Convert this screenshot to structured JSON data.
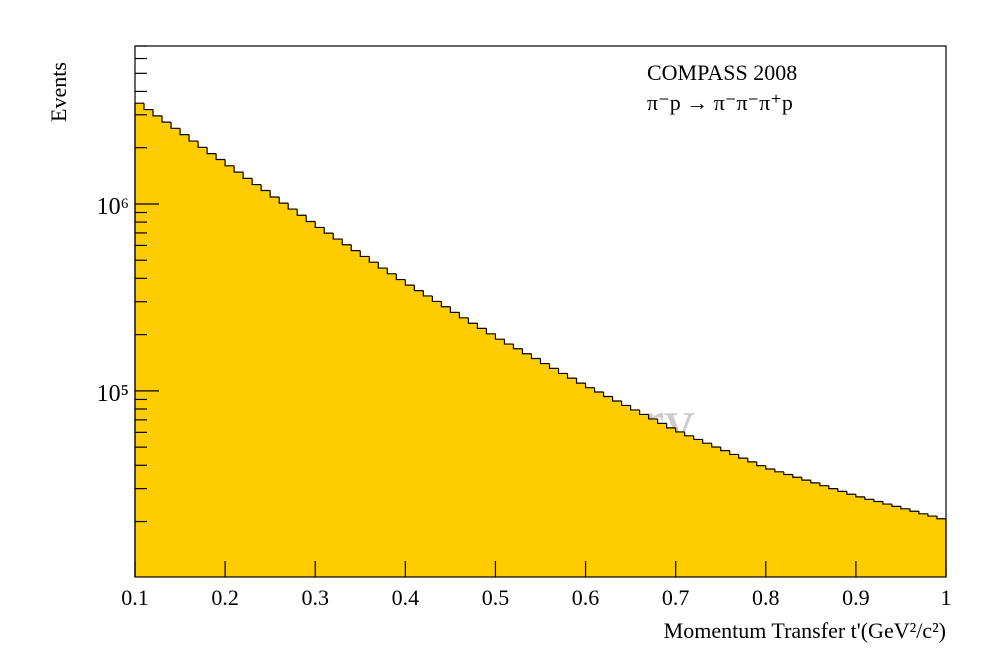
{
  "chart_data": {
    "type": "histogram",
    "x_label": "Momentum Transfer t'(GeV²/c²)",
    "y_label": "Events",
    "annotations": [
      "COMPASS 2008",
      "π⁻p → π⁻π⁻π⁺p",
      "preliminary"
    ],
    "color": "#ffcc00",
    "edge_color": "#000000",
    "log_y": true,
    "bins": [
      0.1,
      0.11,
      0.12,
      0.13,
      0.14,
      0.15,
      0.16,
      0.17,
      0.18,
      0.19,
      0.2,
      0.21,
      0.22,
      0.23,
      0.24,
      0.25,
      0.26,
      0.27,
      0.28,
      0.29,
      0.3,
      0.31,
      0.32,
      0.33,
      0.34,
      0.35,
      0.36,
      0.37,
      0.38,
      0.39,
      0.4,
      0.41,
      0.42,
      0.43,
      0.44,
      0.45,
      0.46,
      0.47,
      0.48,
      0.49,
      0.5,
      0.51,
      0.52,
      0.53,
      0.54,
      0.55,
      0.56,
      0.57,
      0.58,
      0.59,
      0.6,
      0.61,
      0.62,
      0.63,
      0.64,
      0.65,
      0.66,
      0.67,
      0.68,
      0.69,
      0.7,
      0.71,
      0.72,
      0.73,
      0.74,
      0.75,
      0.76,
      0.77,
      0.78,
      0.79,
      0.8,
      0.81,
      0.82,
      0.83,
      0.84,
      0.85,
      0.86,
      0.87,
      0.88,
      0.89,
      0.9,
      0.91,
      0.92,
      0.93,
      0.94,
      0.95,
      0.96,
      0.97,
      0.98,
      0.99,
      1.0
    ],
    "values": [
      3460000,
      3200000,
      2960000,
      2740000,
      2540000,
      2350000,
      2170000,
      2010000,
      1860000,
      1730000,
      1600000,
      1480000,
      1370000,
      1270000,
      1180000,
      1090000,
      1010000,
      939000,
      870000,
      806000,
      749000,
      698000,
      649000,
      605000,
      563000,
      524000,
      488000,
      454000,
      423000,
      394000,
      368000,
      344000,
      322000,
      301000,
      282000,
      263000,
      246000,
      230000,
      216000,
      202000,
      189000,
      178000,
      168000,
      158000,
      149000,
      140000,
      132000,
      124000,
      117000,
      110000,
      104000,
      98600,
      93300,
      88300,
      83600,
      79100,
      74800,
      70800,
      67000,
      63400,
      60300,
      57500,
      55000,
      52500,
      50100,
      47900,
      45700,
      43700,
      41700,
      39800,
      38200,
      36900,
      35700,
      34500,
      33300,
      32200,
      31100,
      30000,
      29000,
      28000,
      27100,
      26300,
      25600,
      24800,
      24100,
      23400,
      22700,
      22000,
      21400,
      20700
    ],
    "xlim": [
      0.1,
      1.0
    ],
    "xticks": [
      0.1,
      0.2,
      0.3,
      0.4,
      0.5,
      0.6,
      0.7,
      0.8,
      0.9,
      {
        "value": 1.0,
        "label": "1"
      }
    ],
    "ylim": [
      10100,
      7000000
    ],
    "yticks": [
      {
        "value": 100000,
        "label": "10⁵"
      },
      {
        "value": 1000000,
        "label": "10⁶"
      }
    ],
    "yminorticks": [
      20000,
      30000,
      40000,
      50000,
      60000,
      70000,
      80000,
      90000,
      200000,
      300000,
      400000,
      500000,
      600000,
      700000,
      800000,
      900000,
      2000000,
      3000000,
      4000000,
      5000000,
      6000000,
      7000000
    ]
  }
}
